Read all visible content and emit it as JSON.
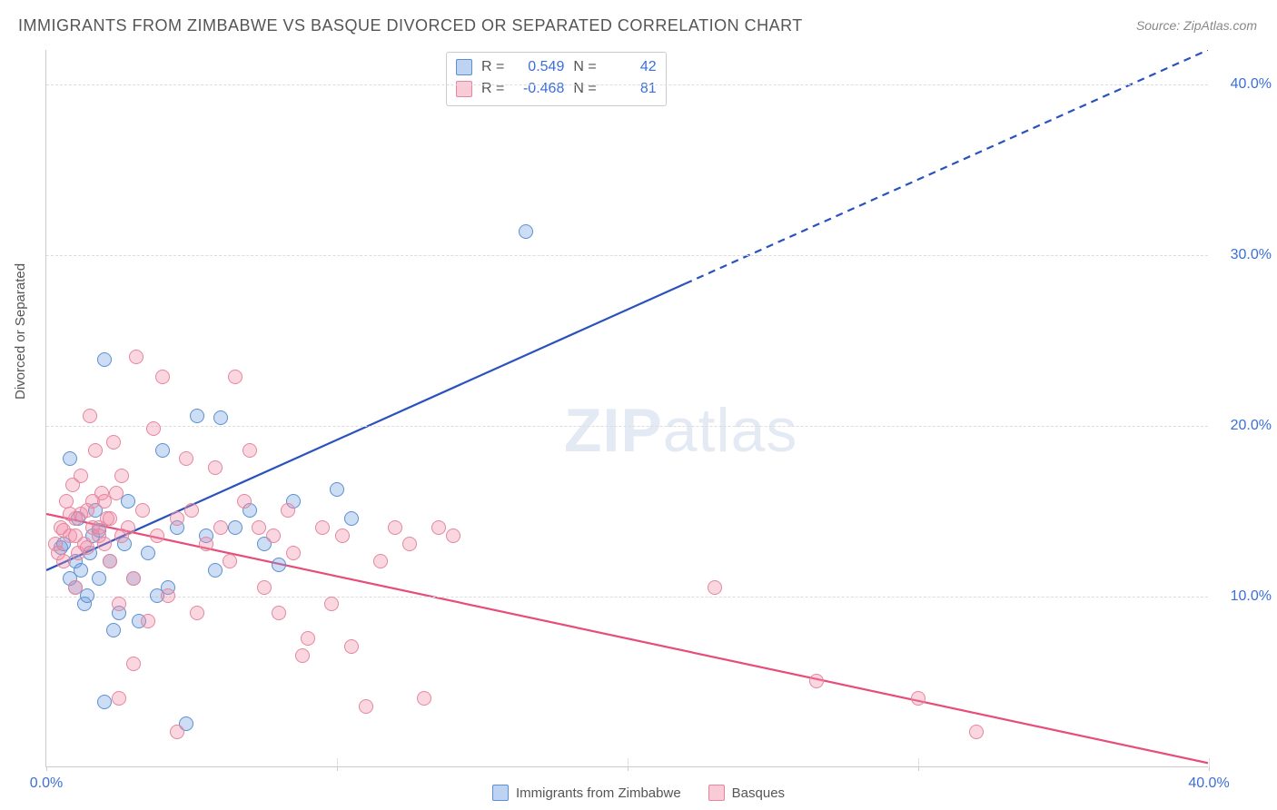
{
  "title": "IMMIGRANTS FROM ZIMBABWE VS BASQUE DIVORCED OR SEPARATED CORRELATION CHART",
  "source": "Source: ZipAtlas.com",
  "y_axis_label": "Divorced or Separated",
  "watermark": {
    "bold": "ZIP",
    "light": "atlas"
  },
  "chart": {
    "type": "scatter",
    "xlim": [
      0,
      40
    ],
    "ylim": [
      0,
      42
    ],
    "x_ticks": [
      0,
      10,
      20,
      30,
      40
    ],
    "x_tick_labels": [
      "0.0%",
      "",
      "",
      "",
      "40.0%"
    ],
    "y_ticks": [
      10,
      20,
      30,
      40
    ],
    "y_tick_labels": [
      "10.0%",
      "20.0%",
      "30.0%",
      "40.0%"
    ],
    "grid_color": "#dddddd",
    "axis_color": "#cccccc",
    "background_color": "#ffffff",
    "label_color": "#3b6fd8",
    "title_fontsize": 18,
    "tick_fontsize": 16,
    "marker_size": 16
  },
  "series": [
    {
      "name": "Immigrants from Zimbabwe",
      "color_fill": "rgba(108,158,224,0.35)",
      "color_stroke": "#5b8fd4",
      "class": "blue",
      "R": "0.549",
      "N": "42",
      "trend": {
        "x1": 0,
        "y1": 11.5,
        "x2": 22,
        "y2": 28.3,
        "type": "solid",
        "color": "#2a52be",
        "width": 2.2,
        "extend_x2": 40,
        "extend_y2": 42.0,
        "extend_type": "dashed"
      },
      "points": [
        [
          0.5,
          12.8
        ],
        [
          0.6,
          13.0
        ],
        [
          0.8,
          11.0
        ],
        [
          0.8,
          18.0
        ],
        [
          1.0,
          12.0
        ],
        [
          1.0,
          10.5
        ],
        [
          1.1,
          14.5
        ],
        [
          1.2,
          11.5
        ],
        [
          1.3,
          9.5
        ],
        [
          1.4,
          10.0
        ],
        [
          1.5,
          12.5
        ],
        [
          1.6,
          13.5
        ],
        [
          1.7,
          15.0
        ],
        [
          1.8,
          11.0
        ],
        [
          2.0,
          23.8
        ],
        [
          2.2,
          12.0
        ],
        [
          2.3,
          8.0
        ],
        [
          2.5,
          9.0
        ],
        [
          2.7,
          13.0
        ],
        [
          2.8,
          15.5
        ],
        [
          3.0,
          11.0
        ],
        [
          3.2,
          8.5
        ],
        [
          3.5,
          12.5
        ],
        [
          3.8,
          10.0
        ],
        [
          4.0,
          18.5
        ],
        [
          4.2,
          10.5
        ],
        [
          4.5,
          14.0
        ],
        [
          4.8,
          2.5
        ],
        [
          5.2,
          20.5
        ],
        [
          5.5,
          13.5
        ],
        [
          5.8,
          11.5
        ],
        [
          6.0,
          20.4
        ],
        [
          6.5,
          14.0
        ],
        [
          7.0,
          15.0
        ],
        [
          7.5,
          13.0
        ],
        [
          8.0,
          11.8
        ],
        [
          8.5,
          15.5
        ],
        [
          10.0,
          16.2
        ],
        [
          10.5,
          14.5
        ],
        [
          2.0,
          3.8
        ],
        [
          1.8,
          13.8
        ],
        [
          16.5,
          31.3
        ]
      ]
    },
    {
      "name": "Basques",
      "color_fill": "rgba(240,140,165,0.35)",
      "color_stroke": "#e6859e",
      "class": "pink",
      "R": "-0.468",
      "N": "81",
      "trend": {
        "x1": 0,
        "y1": 14.8,
        "x2": 40,
        "y2": 0.2,
        "type": "solid",
        "color": "#e64d78",
        "width": 2.2
      },
      "points": [
        [
          0.3,
          13.0
        ],
        [
          0.5,
          14.0
        ],
        [
          0.6,
          12.0
        ],
        [
          0.7,
          15.5
        ],
        [
          0.8,
          13.5
        ],
        [
          0.9,
          16.5
        ],
        [
          1.0,
          14.5
        ],
        [
          1.1,
          12.5
        ],
        [
          1.2,
          17.0
        ],
        [
          1.3,
          13.0
        ],
        [
          1.4,
          15.0
        ],
        [
          1.5,
          20.5
        ],
        [
          1.6,
          14.0
        ],
        [
          1.7,
          18.5
        ],
        [
          1.8,
          13.5
        ],
        [
          1.9,
          16.0
        ],
        [
          2.0,
          13.0
        ],
        [
          2.1,
          14.5
        ],
        [
          2.2,
          12.0
        ],
        [
          2.3,
          19.0
        ],
        [
          2.5,
          9.5
        ],
        [
          2.6,
          17.0
        ],
        [
          2.8,
          14.0
        ],
        [
          3.0,
          11.0
        ],
        [
          3.1,
          24.0
        ],
        [
          3.3,
          15.0
        ],
        [
          3.5,
          8.5
        ],
        [
          3.7,
          19.8
        ],
        [
          3.8,
          13.5
        ],
        [
          4.0,
          22.8
        ],
        [
          4.2,
          10.0
        ],
        [
          4.5,
          14.5
        ],
        [
          4.8,
          18.0
        ],
        [
          5.0,
          15.0
        ],
        [
          5.2,
          9.0
        ],
        [
          5.5,
          13.0
        ],
        [
          5.8,
          17.5
        ],
        [
          6.0,
          14.0
        ],
        [
          6.3,
          12.0
        ],
        [
          6.5,
          22.8
        ],
        [
          6.8,
          15.5
        ],
        [
          7.0,
          18.5
        ],
        [
          7.3,
          14.0
        ],
        [
          7.5,
          10.5
        ],
        [
          7.8,
          13.5
        ],
        [
          8.0,
          9.0
        ],
        [
          8.3,
          15.0
        ],
        [
          8.5,
          12.5
        ],
        [
          8.8,
          6.5
        ],
        [
          9.0,
          7.5
        ],
        [
          9.5,
          14.0
        ],
        [
          9.8,
          9.5
        ],
        [
          10.2,
          13.5
        ],
        [
          10.5,
          7.0
        ],
        [
          11.0,
          3.5
        ],
        [
          11.5,
          12.0
        ],
        [
          12.0,
          14.0
        ],
        [
          12.5,
          13.0
        ],
        [
          13.0,
          4.0
        ],
        [
          13.5,
          14.0
        ],
        [
          14.0,
          13.5
        ],
        [
          23.0,
          10.5
        ],
        [
          26.5,
          5.0
        ],
        [
          30.0,
          4.0
        ],
        [
          32.0,
          2.0
        ],
        [
          4.5,
          2.0
        ],
        [
          3.0,
          6.0
        ],
        [
          2.5,
          4.0
        ],
        [
          1.0,
          10.5
        ],
        [
          0.4,
          12.5
        ],
        [
          0.6,
          13.8
        ],
        [
          0.8,
          14.8
        ],
        [
          1.0,
          13.5
        ],
        [
          1.2,
          14.8
        ],
        [
          1.4,
          12.8
        ],
        [
          1.6,
          15.5
        ],
        [
          1.8,
          14.0
        ],
        [
          2.0,
          15.5
        ],
        [
          2.2,
          14.5
        ],
        [
          2.4,
          16.0
        ],
        [
          2.6,
          13.5
        ]
      ]
    }
  ],
  "stats_legend": {
    "r_label": "R =",
    "n_label": "N ="
  },
  "bottom_legend": {
    "items": [
      "Immigrants from Zimbabwe",
      "Basques"
    ]
  }
}
